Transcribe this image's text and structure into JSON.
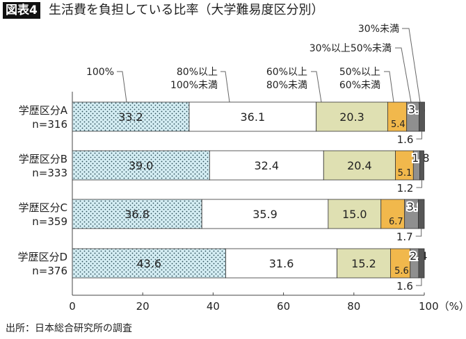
{
  "title_badge": "図表4",
  "title": "生活費を負担している比率（大学難易度区分別）",
  "source": "出所：日本総合研究所の調査",
  "chart_data": {
    "type": "bar",
    "orientation": "horizontal-stacked",
    "title": "生活費を負担している比率（大学難易度区分別）",
    "xlim": [
      0,
      100
    ],
    "xticks": [
      "0",
      "20",
      "40",
      "60",
      "80",
      "100（%）"
    ],
    "xtick_values": [
      0,
      20,
      40,
      60,
      80,
      100
    ],
    "categories": [
      {
        "name": "学歴区分A",
        "n": "n=316"
      },
      {
        "name": "学歴区分B",
        "n": "n=333"
      },
      {
        "name": "学歴区分C",
        "n": "n=359"
      },
      {
        "name": "学歴区分D",
        "n": "n=376"
      }
    ],
    "series": [
      {
        "name": "100%",
        "lines": [
          "100%"
        ],
        "color": "#d4edf3",
        "pattern": "dots",
        "values": [
          33.2,
          39.0,
          36.8,
          43.6
        ]
      },
      {
        "name": "80%以上100%未満",
        "lines": [
          "80%以上",
          "100%未満"
        ],
        "color": "#ffffff",
        "values": [
          36.1,
          32.4,
          35.9,
          31.6
        ]
      },
      {
        "name": "60%以上80%未満",
        "lines": [
          "60%以上",
          "80%未満"
        ],
        "color": "#dfe0b2",
        "values": [
          20.3,
          20.4,
          15.0,
          15.2
        ]
      },
      {
        "name": "50%以上60%未満",
        "lines": [
          "50%以上",
          "60%未満"
        ],
        "color": "#f1b84c",
        "values": [
          5.4,
          5.1,
          6.7,
          5.6
        ]
      },
      {
        "name": "30%以上50%未満",
        "lines": [
          "30%以上50%未満"
        ],
        "color": "#8f8f8f",
        "values": [
          3.5,
          1.8,
          3.9,
          2.4
        ]
      },
      {
        "name": "30%未満",
        "lines": [
          "30%未満"
        ],
        "color": "#565656",
        "values": [
          1.6,
          1.2,
          1.7,
          1.6
        ]
      }
    ],
    "value_labels": [
      [
        "33.2",
        "36.1",
        "20.3",
        "5.4",
        "3.5",
        "1.6"
      ],
      [
        "39.0",
        "32.4",
        "20.4",
        "5.1",
        "1.8",
        "1.2"
      ],
      [
        "36.8",
        "35.9",
        "15.0",
        "6.7",
        "3.9",
        "1.7"
      ],
      [
        "43.6",
        "31.6",
        "15.2",
        "5.6",
        "2.4",
        "1.6"
      ]
    ]
  }
}
